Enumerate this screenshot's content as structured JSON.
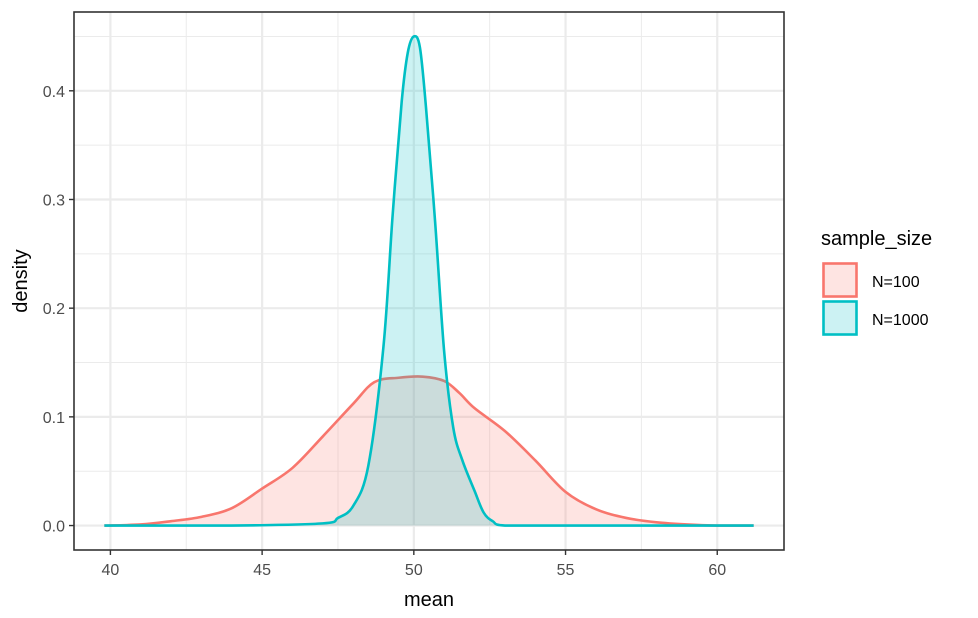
{
  "chart_data": {
    "type": "area",
    "xlabel": "mean",
    "ylabel": "density",
    "xlim": [
      38.8,
      62.2
    ],
    "ylim": [
      -0.0225,
      0.4725
    ],
    "xticks": [
      40,
      45,
      50,
      55,
      60
    ],
    "yticks": [
      0.0,
      0.1,
      0.2,
      0.3,
      0.4
    ],
    "ytick_labels": [
      "0.0",
      "0.1",
      "0.2",
      "0.3",
      "0.4"
    ],
    "xtick_labels": [
      "40",
      "45",
      "50",
      "55",
      "60"
    ],
    "grid": true,
    "legend": {
      "title": "sample_size",
      "placement": "right",
      "entries": [
        "N=100",
        "N=1000"
      ]
    },
    "series": [
      {
        "name": "N=100",
        "line_color": "#F8766D",
        "fill_color": "#F8766D",
        "fill_opacity": 0.2,
        "x": [
          39.8,
          41,
          42,
          43,
          44,
          45,
          46,
          47,
          48,
          48.7,
          49.5,
          50.3,
          51,
          51.5,
          52,
          53,
          54,
          55,
          56,
          57,
          58,
          59,
          60,
          61.2
        ],
        "y": [
          0.0,
          0.001,
          0.004,
          0.008,
          0.016,
          0.034,
          0.053,
          0.082,
          0.112,
          0.132,
          0.136,
          0.137,
          0.133,
          0.122,
          0.108,
          0.087,
          0.06,
          0.031,
          0.015,
          0.007,
          0.003,
          0.001,
          0.0,
          0.0
        ]
      },
      {
        "name": "N=1000",
        "line_color": "#00BFC4",
        "fill_color": "#00BFC4",
        "fill_opacity": 0.2,
        "x": [
          39.8,
          44,
          47,
          47.5,
          48,
          48.5,
          49,
          49.3,
          49.6,
          49.8,
          50,
          50.2,
          50.4,
          50.7,
          51,
          51.3,
          51.6,
          52,
          52.3,
          52.6,
          53,
          55,
          61.2
        ],
        "y": [
          0.0,
          0.0,
          0.002,
          0.007,
          0.018,
          0.055,
          0.165,
          0.285,
          0.39,
          0.435,
          0.45,
          0.44,
          0.385,
          0.28,
          0.16,
          0.09,
          0.06,
          0.032,
          0.012,
          0.004,
          0.0,
          0.0,
          0.0
        ]
      }
    ]
  }
}
